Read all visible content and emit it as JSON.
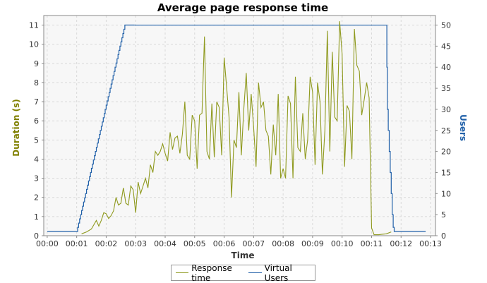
{
  "chart_data": {
    "type": "line",
    "title": "Average page response time",
    "xlabel": "Time",
    "ylabel_left": "Duration (s)",
    "ylabel_right": "Users",
    "x_ticks": [
      "00:00",
      "00:01",
      "00:02",
      "00:03",
      "00:04",
      "00:05",
      "00:06",
      "00:07",
      "00:08",
      "00:09",
      "00:10",
      "00:11",
      "00:12",
      "00:13"
    ],
    "xlim_seconds": [
      -7,
      790
    ],
    "y_left": {
      "min": 0,
      "max": 11.5,
      "ticks": [
        0,
        1,
        2,
        3,
        4,
        5,
        6,
        7,
        8,
        9,
        10,
        11
      ]
    },
    "y_right": {
      "min": 0,
      "max": 52.27,
      "ticks": [
        0,
        5,
        10,
        15,
        20,
        25,
        30,
        35,
        40,
        45,
        50
      ]
    },
    "grid": true,
    "legend_position": "bottom",
    "colors": {
      "response": "#8f9a1f",
      "users": "#1f5fa8",
      "left_axis_label": "#808000",
      "right_axis_label": "#1f5fa8"
    },
    "series": [
      {
        "name": "Response time",
        "axis": "left",
        "t_seconds": [
          70,
          80,
          90,
          100,
          105,
          110,
          115,
          120,
          125,
          130,
          135,
          140,
          145,
          150,
          155,
          160,
          165,
          170,
          175,
          180,
          185,
          190,
          195,
          200,
          205,
          210,
          215,
          220,
          225,
          230,
          235,
          240,
          245,
          250,
          255,
          260,
          265,
          270,
          275,
          280,
          285,
          290,
          295,
          300,
          305,
          310,
          315,
          320,
          325,
          330,
          335,
          340,
          345,
          350,
          355,
          360,
          365,
          370,
          375,
          380,
          385,
          390,
          395,
          400,
          405,
          410,
          415,
          420,
          425,
          430,
          435,
          440,
          445,
          450,
          455,
          460,
          465,
          470,
          475,
          480,
          485,
          490,
          495,
          500,
          505,
          510,
          515,
          520,
          525,
          530,
          535,
          540,
          545,
          550,
          555,
          560,
          565,
          570,
          575,
          580,
          585,
          590,
          595,
          600,
          605,
          610,
          615,
          620,
          625,
          630,
          635,
          640,
          645,
          650,
          655,
          660,
          665,
          670,
          675,
          680,
          690,
          700,
          720,
          740,
          760,
          770
        ],
        "values": [
          0.1,
          0.2,
          0.35,
          0.8,
          0.5,
          0.8,
          1.2,
          1.15,
          0.9,
          1.05,
          1.3,
          2.0,
          1.6,
          1.7,
          2.5,
          1.7,
          1.6,
          2.6,
          2.4,
          1.2,
          2.8,
          2.2,
          2.6,
          3.0,
          2.5,
          3.7,
          3.3,
          4.4,
          4.2,
          4.4,
          4.8,
          4.3,
          3.9,
          5.4,
          4.5,
          5.1,
          5.2,
          4.3,
          5.3,
          7.0,
          4.2,
          4.0,
          6.3,
          6.0,
          3.5,
          6.3,
          6.4,
          10.4,
          4.4,
          4.0,
          6.9,
          4.1,
          7.0,
          6.7,
          4.2,
          9.3,
          7.8,
          6.2,
          2.0,
          5.0,
          4.6,
          7.5,
          4.2,
          6.6,
          8.5,
          5.5,
          7.4,
          5.7,
          3.6,
          8.0,
          6.7,
          7.0,
          5.5,
          5.2,
          3.2,
          5.8,
          4.2,
          7.4,
          3.0,
          3.5,
          3.0,
          7.3,
          6.9,
          3.0,
          8.3,
          4.6,
          4.4,
          6.4,
          4.0,
          5.0,
          8.3,
          7.5,
          3.7,
          8.0,
          7.0,
          3.2,
          5.5,
          10.7,
          4.4,
          9.6,
          6.2,
          6.0,
          11.2,
          9.5,
          3.6,
          6.8,
          6.5,
          4.0,
          10.8,
          8.9,
          8.6,
          6.3,
          7.1,
          8.0,
          7.2,
          0.4,
          0.05,
          0.05,
          0.05,
          0.07,
          0.1,
          0.2
        ]
      },
      {
        "name": "Virtual Users",
        "axis": "right",
        "steps": [
          [
            0,
            1
          ],
          [
            60,
            1
          ],
          [
            62,
            2
          ],
          [
            64,
            3
          ],
          [
            66,
            4
          ],
          [
            68,
            5
          ],
          [
            70,
            6
          ],
          [
            72,
            7
          ],
          [
            74,
            8
          ],
          [
            76,
            9
          ],
          [
            78,
            10
          ],
          [
            80,
            11
          ],
          [
            82,
            12
          ],
          [
            84,
            13
          ],
          [
            86,
            14
          ],
          [
            88,
            15
          ],
          [
            90,
            16
          ],
          [
            92,
            17
          ],
          [
            94,
            18
          ],
          [
            96,
            19
          ],
          [
            98,
            20
          ],
          [
            100,
            21
          ],
          [
            102,
            22
          ],
          [
            104,
            23
          ],
          [
            106,
            24
          ],
          [
            108,
            25
          ],
          [
            110,
            26
          ],
          [
            112,
            27
          ],
          [
            114,
            28
          ],
          [
            116,
            29
          ],
          [
            118,
            30
          ],
          [
            120,
            31
          ],
          [
            122,
            32
          ],
          [
            124,
            33
          ],
          [
            126,
            34
          ],
          [
            128,
            35
          ],
          [
            130,
            36
          ],
          [
            132,
            37
          ],
          [
            134,
            38
          ],
          [
            136,
            39
          ],
          [
            138,
            40
          ],
          [
            140,
            41
          ],
          [
            142,
            42
          ],
          [
            144,
            43
          ],
          [
            146,
            44
          ],
          [
            148,
            45
          ],
          [
            150,
            46
          ],
          [
            152,
            47
          ],
          [
            154,
            48
          ],
          [
            156,
            49
          ],
          [
            158,
            50
          ],
          [
            178,
            50
          ]
        ]
      }
    ]
  }
}
